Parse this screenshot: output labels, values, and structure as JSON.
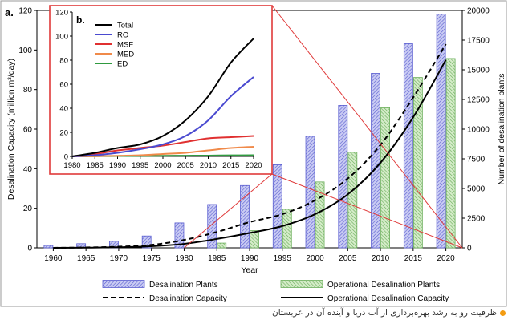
{
  "chart_data": [
    {
      "type": "bar",
      "panel_label": "a.",
      "xlabel": "Year",
      "ylabel": "Desalination Capacity (million m³/day)",
      "y2label": "Number of desalination plants",
      "categories": [
        "1960",
        "1965",
        "1970",
        "1975",
        "1980",
        "1985",
        "1990",
        "1995",
        "2000",
        "2005",
        "2010",
        "2015",
        "2020"
      ],
      "ylim": [
        0,
        120
      ],
      "y_ticks": [
        "0",
        "20",
        "40",
        "60",
        "80",
        "100",
        "120"
      ],
      "y2lim": [
        0,
        20000
      ],
      "y2_ticks": [
        "0",
        "2500",
        "5000",
        "7500",
        "10000",
        "12500",
        "15000",
        "17500",
        "20000"
      ],
      "series": [
        {
          "name": "Desalination Plants",
          "kind": "bar",
          "axis": "right",
          "color": "#6b6fd6",
          "values": [
            200,
            350,
            550,
            1000,
            2100,
            3650,
            5250,
            7000,
            9400,
            12000,
            14700,
            17200,
            19700
          ]
        },
        {
          "name": "Operational Desalination Plants",
          "kind": "bar",
          "axis": "right",
          "color": "#79b86a",
          "values": [
            null,
            null,
            null,
            null,
            null,
            400,
            1450,
            3250,
            5550,
            8050,
            11800,
            14350,
            15950
          ]
        },
        {
          "name": "Desalination Capacity",
          "kind": "line",
          "style": "dashed",
          "axis": "left",
          "color": "#000000",
          "values": [
            0,
            0.2,
            0.6,
            1.5,
            4,
            8,
            13,
            17,
            24,
            35,
            52,
            76,
            103
          ]
        },
        {
          "name": "Operational Desalination Capacity",
          "kind": "line",
          "style": "solid",
          "axis": "left",
          "color": "#000000",
          "values": [
            0,
            0.1,
            0.3,
            0.8,
            2,
            4.5,
            7.5,
            11,
            17,
            27,
            43,
            66,
            95
          ]
        }
      ]
    },
    {
      "type": "line",
      "panel_label": "b.",
      "x": [
        1980,
        1985,
        1990,
        1995,
        2000,
        2005,
        2010,
        2015,
        2020
      ],
      "x_ticks": [
        "1980",
        "1985",
        "1990",
        "1995",
        "2000",
        "2005",
        "2010",
        "2015",
        "2020"
      ],
      "ylim": [
        0,
        120
      ],
      "y_ticks": [
        "0",
        "20",
        "40",
        "60",
        "80",
        "100",
        "120"
      ],
      "series": [
        {
          "name": "Total",
          "color": "#000000",
          "values": [
            0,
            3,
            7,
            10,
            17,
            30,
            50,
            78,
            98
          ]
        },
        {
          "name": "RO",
          "color": "#4a4ad0",
          "values": [
            0,
            1,
            3,
            6,
            10,
            17,
            30,
            50,
            66
          ]
        },
        {
          "name": "MSF",
          "color": "#e03030",
          "values": [
            0,
            2,
            5,
            7,
            9,
            12,
            15,
            16,
            17
          ]
        },
        {
          "name": "MED",
          "color": "#f08a4a",
          "values": [
            0,
            0.2,
            0.5,
            1,
            2,
            3,
            5,
            7,
            8
          ]
        },
        {
          "name": "ED",
          "color": "#2f9a3f",
          "values": [
            0,
            0.2,
            0.3,
            0.4,
            0.5,
            0.6,
            0.7,
            0.9,
            1
          ]
        }
      ]
    }
  ],
  "caption": "ظرفیت رو به رشد بهره‌برداری از آب دریا و آینده آن در عربستان"
}
